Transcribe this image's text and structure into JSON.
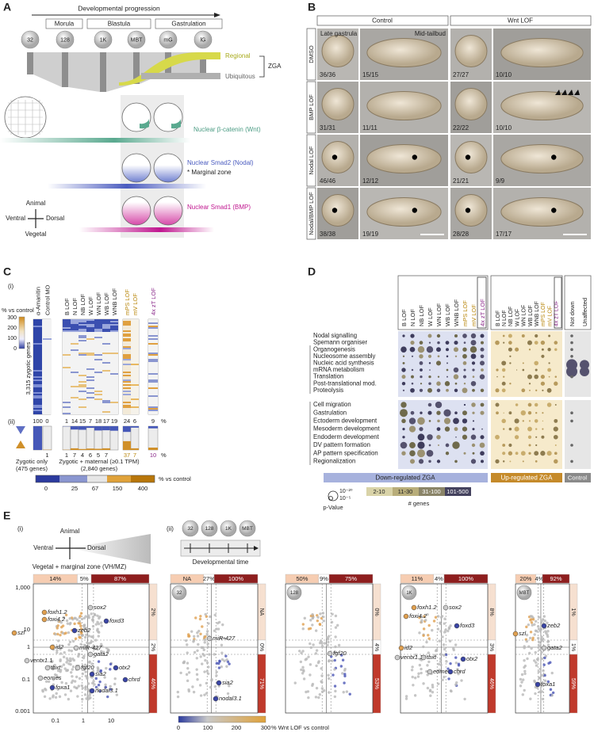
{
  "A": {
    "label": "A",
    "title": "Developmental progression",
    "phases": [
      "Morula",
      "Blastula",
      "Gastrulation"
    ],
    "stages": [
      "32",
      "128",
      "1K",
      "MBT",
      "mG",
      "lG"
    ],
    "zga": [
      "Regional",
      "Ubiquitous"
    ],
    "zga_label": "ZGA",
    "signals": [
      "Nuclear β-catenin (Wnt)",
      "Nuclear Smad2 (Nodal)",
      "Nuclear Smad1 (BMP)"
    ],
    "note": "* Marginal zone",
    "axes": [
      "Animal",
      "Ventral",
      "Dorsal",
      "Vegetal"
    ]
  },
  "B": {
    "label": "B",
    "groups": [
      "Control",
      "Wnt LOF"
    ],
    "rows": [
      "DMSO",
      "BMP LOF",
      "Nodal LOF",
      "Nodal/BMP LOF"
    ],
    "stage_labels": [
      "Late gastrula",
      "Mid-tailbud"
    ],
    "counts": [
      [
        "36/36",
        "15/15",
        "27/27",
        "10/10"
      ],
      [
        "31/31",
        "11/11",
        "22/22",
        "10/10"
      ],
      [
        "46/46",
        "12/12",
        "21/21",
        "9/9"
      ],
      [
        "38/38",
        "19/19",
        "28/28",
        "17/17"
      ]
    ]
  },
  "C": {
    "label": "C",
    "sub": [
      "(i)",
      "(ii)"
    ],
    "columns": [
      "α-Amanitin",
      "Control MO",
      "B LOF",
      "N LOF",
      "NB LOF",
      "W LOF",
      "WN LOF",
      "WB LOF",
      "WNB LOF",
      "mPS LOF",
      "mV LOF",
      "4x zT LOF"
    ],
    "scale_label": "% vs control",
    "scale_ticks": [
      "300",
      "200",
      "100",
      "0"
    ],
    "ylabel": "3,315 zygotic genes",
    "down": [
      100,
      0,
      1,
      14,
      15,
      7,
      18,
      17,
      19,
      24,
      6,
      9
    ],
    "up": [
      1,
      1,
      7,
      4,
      6,
      5,
      7,
      37,
      7,
      10
    ],
    "percent": "%",
    "zygotic_only": [
      "Zygotic only",
      "(475 genes)"
    ],
    "zygotic_maternal": [
      "Zygotic + maternal (≥0.1 TPM)",
      "(2,840 genes)"
    ],
    "colorbar_ticks": [
      "0",
      "25",
      "67",
      "150",
      "400"
    ],
    "colorbar_label": "% vs control"
  },
  "D": {
    "label": "D",
    "columns": [
      "B LOF",
      "N LOF",
      "NB LOF",
      "W LOF",
      "WN LOF",
      "WB LOF",
      "WNB LOF",
      "mPS LOF",
      "mV LOF",
      "4x zT LOF"
    ],
    "control_columns": [
      "Not down",
      "Unaffected"
    ],
    "rows1": [
      "Nodal signalling",
      "Spemann organiser",
      "Organogenesis",
      "Nucleosome assembly",
      "Nucleic acid synthesis",
      "mRNA metabolism",
      "Translation",
      "Post-translational mod.",
      "Proteolysis"
    ],
    "rows2": [
      "Cell migration",
      "Gastrulation",
      "Ectoderm development",
      "Mesoderm development",
      "Endoderm development",
      "DV pattern formation",
      "AP pattern specification",
      "Regionalization"
    ],
    "footer": [
      "Down-regulated ZGA",
      "Up-regulated ZGA",
      "Control"
    ],
    "pvalue": [
      "10⁻²⁰",
      "10⁻⁵"
    ],
    "pvalue_label": "p-Value",
    "genes_bins": [
      "2-10",
      "11-30",
      "31-100",
      "101-500"
    ],
    "genes_label": "# genes"
  },
  "E": {
    "label": "E",
    "sub": [
      "(i)",
      "(ii)"
    ],
    "axes": [
      "Animal",
      "Ventral",
      "Dorsal",
      "Vegetal + marginal zone (VH/MZ)"
    ],
    "stages": [
      "32",
      "128",
      "1K",
      "MBT"
    ],
    "time_label": "Developmental time",
    "yticks": [
      "1,000",
      "10",
      "1",
      "0.1",
      "0.001"
    ],
    "xticks": [
      "0.1",
      "1",
      "10"
    ],
    "colorbar_ticks": [
      "0",
      "100",
      "200",
      "300"
    ],
    "colorbar_label": "% Wnt LOF vs control",
    "plots": [
      {
        "top": [
          "14%",
          "5%",
          "87%"
        ],
        "right": [
          "2%",
          "2%",
          "46%"
        ],
        "genes": [
          "foxh1.2",
          "foxi4.2",
          "szl",
          "sox2",
          "zeb2",
          "foxd3",
          "id2",
          "miR-427",
          "gata2",
          "ventx1.1",
          "tbxt",
          "fgf20",
          "otx2",
          "eomes",
          "sia2",
          "chrd",
          "foxa1",
          "nodal3.1"
        ]
      },
      {
        "top": [
          "NA",
          "27%",
          "100%"
        ],
        "right": [
          "NA",
          "0%",
          "71%"
        ],
        "genes": [
          "miR-427",
          "sia2",
          "nodal3.1"
        ]
      },
      {
        "top": [
          "50%",
          "9%",
          "75%"
        ],
        "right": [
          "0%",
          "4%",
          "53%"
        ],
        "genes": [
          "fgf20"
        ]
      },
      {
        "top": [
          "11%",
          "4%",
          "100%"
        ],
        "right": [
          "8%",
          "3%",
          "46%"
        ],
        "genes": [
          "foxh1.2",
          "foxi4.2",
          "sox2",
          "foxd3",
          "id2",
          "ventx1.1",
          "tbxt",
          "otx2",
          "eomes",
          "chrd"
        ]
      },
      {
        "top": [
          "20%",
          "4%",
          "92%"
        ],
        "right": [
          "1%",
          "1%",
          "59%"
        ],
        "genes": [
          "szl",
          "zeb2",
          "gata2",
          "foxa1"
        ]
      }
    ]
  }
}
